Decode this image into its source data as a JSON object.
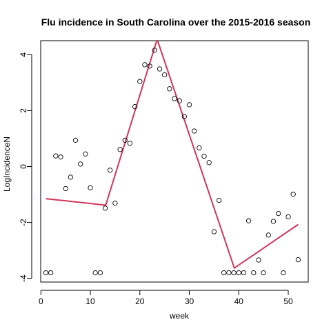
{
  "chart_data": {
    "type": "scatter",
    "title": "Flu incidence in South Carolina over the 2015-2016 season",
    "xlabel": "week",
    "ylabel": "LogIncidenceN",
    "xlim": [
      -0.04,
      54.04
    ],
    "ylim": [
      -4.13,
      4.5
    ],
    "xticks": [
      0,
      10,
      20,
      30,
      40,
      50
    ],
    "yticks": [
      -4,
      -2,
      0,
      2,
      4
    ],
    "points": {
      "x": [
        1,
        2,
        3,
        4,
        5,
        6,
        7,
        8,
        9,
        10,
        11,
        12,
        13,
        14,
        15,
        16,
        17,
        18,
        19,
        20,
        21,
        22,
        23,
        24,
        25,
        26,
        27,
        28,
        29,
        30,
        31,
        32,
        33,
        34,
        35,
        36,
        37,
        38,
        39,
        40,
        41,
        42,
        43,
        44,
        45,
        46,
        47,
        48,
        49,
        50,
        51,
        52
      ],
      "y": [
        -3.8,
        -3.8,
        0.38,
        0.34,
        -0.79,
        -0.38,
        0.94,
        0.09,
        0.45,
        -0.76,
        -3.8,
        -3.8,
        -1.49,
        -0.13,
        -1.31,
        0.61,
        0.94,
        0.83,
        2.14,
        3.04,
        3.64,
        3.59,
        4.16,
        3.49,
        3.28,
        2.78,
        2.43,
        2.35,
        1.79,
        2.21,
        1.27,
        0.67,
        0.37,
        0.14,
        -2.33,
        -1.21,
        -3.8,
        -3.8,
        -3.8,
        -3.8,
        -3.8,
        -1.94,
        -3.8,
        -3.34,
        -3.8,
        -2.45,
        -1.96,
        -1.68,
        -3.8,
        -1.8,
        -0.99,
        -3.33
      ]
    },
    "fit_line": {
      "color": "#d1355a",
      "x": [
        1,
        13.1,
        23.5,
        39.1,
        52
      ],
      "y": [
        -1.15,
        -1.38,
        4.55,
        -3.63,
        -2.07
      ]
    }
  }
}
